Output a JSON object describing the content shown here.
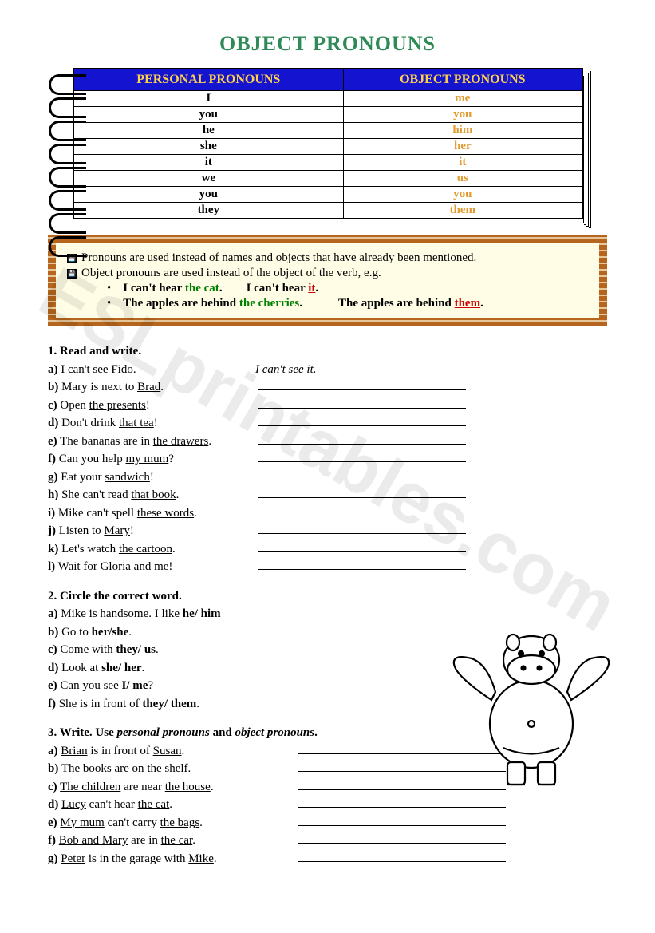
{
  "title": "OBJECT PRONOUNS",
  "table": {
    "header_personal": "PERSONAL PRONOUNS",
    "header_object": "OBJECT PRONOUNS",
    "rows": [
      {
        "personal": "I",
        "object": "me"
      },
      {
        "personal": "you",
        "object": "you"
      },
      {
        "personal": "he",
        "object": "him"
      },
      {
        "personal": "she",
        "object": "her"
      },
      {
        "personal": "it",
        "object": "it"
      },
      {
        "personal": "we",
        "object": "us"
      },
      {
        "personal": "you",
        "object": "you"
      },
      {
        "personal": "they",
        "object": "them"
      }
    ]
  },
  "rules": {
    "line1": "Pronouns are used instead of names and objects that have already been mentioned.",
    "line2": "Object pronouns are used instead of the object of the verb, e.g.",
    "ex1_a": "I can't hear ",
    "ex1_green": "the cat",
    "ex1_dot": ".",
    "ex1_b": "I can't hear ",
    "ex1_red": "it",
    "ex2_a": "The apples are behind ",
    "ex2_green": "the cherries",
    "ex2_dot": ".",
    "ex2_b": "The apples are behind ",
    "ex2_red": "them"
  },
  "ex1": {
    "title": "1. Read and write.",
    "answer_a": "I can't see it.",
    "items": [
      {
        "letter": "a)",
        "pre": " I can't see ",
        "u": "Fido",
        "post": "."
      },
      {
        "letter": "b)",
        "pre": " Mary is next to ",
        "u": "Brad",
        "post": "."
      },
      {
        "letter": "c)",
        "pre": " Open ",
        "u": "the presents",
        "post": "!"
      },
      {
        "letter": "d)",
        "pre": " Don't drink ",
        "u": "that tea",
        "post": "!"
      },
      {
        "letter": "e)",
        "pre": " The bananas are in ",
        "u": "the drawers",
        "post": "."
      },
      {
        "letter": "f)",
        "pre": " Can you help ",
        "u": "my mum",
        "post": "?"
      },
      {
        "letter": "g)",
        "pre": " Eat your ",
        "u": "sandwich",
        "post": "!"
      },
      {
        "letter": "h)",
        "pre": " She can't read ",
        "u": "that book",
        "post": "."
      },
      {
        "letter": "i)",
        "pre": " Mike can't spell ",
        "u": "these words",
        "post": "."
      },
      {
        "letter": "j)",
        "pre": " Listen to ",
        "u": "Mary",
        "post": "!"
      },
      {
        "letter": "k)",
        "pre": " Let's watch ",
        "u": "the cartoon",
        "post": "."
      },
      {
        "letter": "l)",
        "pre": " Wait for ",
        "u": "Gloria and me",
        "post": "!"
      }
    ]
  },
  "ex2": {
    "title": "2. Circle the correct word.",
    "items": [
      {
        "letter": "a)",
        "text": " Mike is handsome. I like ",
        "bold": "he/ him"
      },
      {
        "letter": "b)",
        "text": " Go to ",
        "bold": "her/she",
        "post": "."
      },
      {
        "letter": "c)",
        "text": " Come with ",
        "bold": "they/ us",
        "post": "."
      },
      {
        "letter": "d)",
        "text": " Look at ",
        "bold": "she/ her",
        "post": "."
      },
      {
        "letter": "e)",
        "text": " Can you see ",
        "bold": "I/ me",
        "post": "?"
      },
      {
        "letter": "f)",
        "text": " She is in front of ",
        "bold": "they/ them",
        "post": "."
      }
    ]
  },
  "ex3": {
    "title_a": "3. Write. Use ",
    "title_i1": "personal pronouns",
    "title_b": " and ",
    "title_i2": "object pronouns",
    "title_c": ".",
    "items": [
      {
        "letter": "a)",
        "u1": "Brian",
        "mid": " is in front of ",
        "u2": "Susan",
        "post": "."
      },
      {
        "letter": "b)",
        "u1": "The books",
        "mid": " are on ",
        "u2": "the shelf",
        "post": "."
      },
      {
        "letter": "c)",
        "u1": "The children",
        "mid": " are near ",
        "u2": "the house",
        "post": "."
      },
      {
        "letter": "d)",
        "u1": "Lucy",
        "mid": " can't hear ",
        "u2": "the cat",
        "post": "."
      },
      {
        "letter": "e)",
        "u1": "My mum",
        "mid": " can't carry ",
        "u2": "the bags",
        "post": "."
      },
      {
        "letter": "f)",
        "u1": "Bob and Mary",
        "mid": " are in ",
        "u2": "the car",
        "post": "."
      },
      {
        "letter": "g)",
        "u1": "Peter",
        "mid": " is in the garage with ",
        "u2": "Mike",
        "post": "."
      }
    ]
  },
  "watermark": "ESLprintables.com",
  "colors": {
    "title": "#2e8b57",
    "table_header_bg": "#1414d0",
    "table_header_fg": "#ffd24a",
    "object_col": "#e09a2e",
    "rules_bg": "#fffde6",
    "green": "#008000",
    "red": "#cc0000"
  }
}
